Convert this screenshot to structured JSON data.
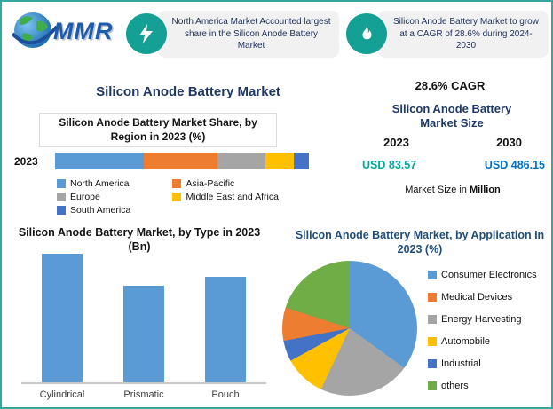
{
  "colors": {
    "accent_teal": "#14a095",
    "border_teal": "#35a79c",
    "heading_navy": "#203864",
    "pie_title_blue": "#1f4e79",
    "value_teal": "#00a99d",
    "value_blue": "#0070c0",
    "series_blue": "#5B9BD5",
    "series_orange": "#ED7D31",
    "series_gray": "#A5A5A5",
    "series_yellow": "#FFC000",
    "series_dark_blue": "#4472C4",
    "series_green": "#70AD47"
  },
  "logo": {
    "name": "MMR"
  },
  "banners": [
    {
      "icon": "lightning-icon",
      "text": "North America Market Accounted largest share in the Silicon Anode Battery Market"
    },
    {
      "icon": "flame-icon",
      "text": "Silicon Anode Battery Market to grow at a CAGR of 28.6% during 2024-2030"
    }
  ],
  "main_title": "Silicon Anode Battery Market",
  "stats": {
    "cagr": "28.6% CAGR",
    "market_size_title": "Silicon Anode Battery Market Size",
    "years": [
      "2023",
      "2030"
    ],
    "values": [
      "USD 83.57",
      "USD 486.15"
    ],
    "note_prefix": "Market Size in",
    "note_unit": "Million"
  },
  "chart_data": [
    {
      "id": "region_share",
      "type": "bar",
      "variant": "stacked-horizontal",
      "title": "Silicon Anode Battery Market Share, by Region in 2023 (%)",
      "categories": [
        "2023"
      ],
      "series": [
        {
          "name": "North America",
          "values": [
            35
          ],
          "color": "#5B9BD5"
        },
        {
          "name": "Asia-Pacific",
          "values": [
            29
          ],
          "color": "#ED7D31"
        },
        {
          "name": "Europe",
          "values": [
            19
          ],
          "color": "#A5A5A5"
        },
        {
          "name": "Middle East and Africa",
          "values": [
            11
          ],
          "color": "#FFC000"
        },
        {
          "name": "South America",
          "values": [
            6
          ],
          "color": "#4472C4"
        }
      ],
      "xlim": [
        0,
        100
      ],
      "legend_position": "bottom"
    },
    {
      "id": "type_2023",
      "type": "bar",
      "title": "Silicon Anode Battery Market, by Type in 2023 (Bn)",
      "categories": [
        "Cylindrical",
        "Prismatic",
        "Pouch"
      ],
      "values": [
        1.0,
        0.75,
        0.82
      ],
      "values_note": "axis unlabeled; values estimated from relative bar heights",
      "color": "#5B9BD5",
      "ylabel": ""
    },
    {
      "id": "application_2023",
      "type": "pie",
      "title": "Silicon Anode Battery Market, by Application In 2023 (%)",
      "labels": [
        "Consumer Electronics",
        "Medical Devices",
        "Energy Harvesting",
        "Automobile",
        "Industrial",
        "others"
      ],
      "values": [
        35,
        8,
        22,
        10,
        5,
        20
      ],
      "colors": [
        "#5B9BD5",
        "#ED7D31",
        "#A5A5A5",
        "#FFC000",
        "#4472C4",
        "#70AD47"
      ],
      "slice_order": [
        0,
        2,
        3,
        4,
        1,
        5
      ],
      "legend_position": "right"
    }
  ]
}
